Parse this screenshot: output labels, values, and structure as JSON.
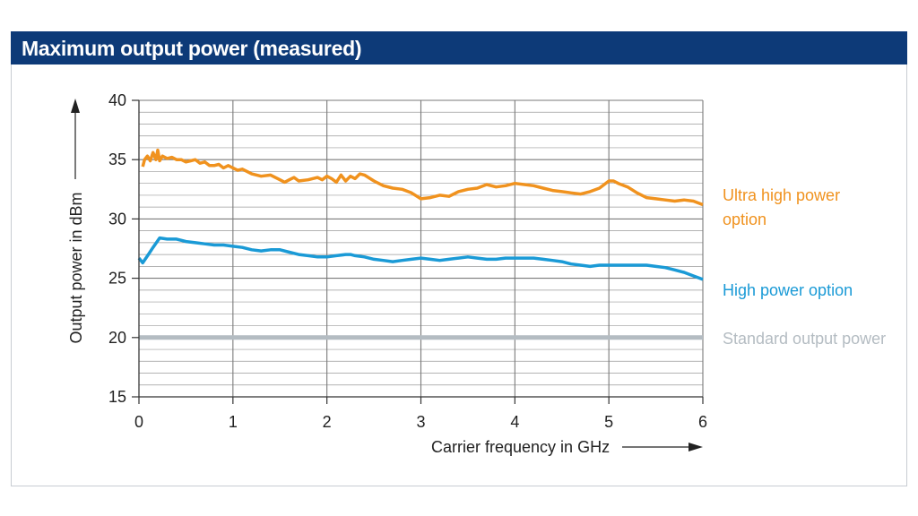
{
  "header": {
    "title": "Maximum output power (measured)"
  },
  "chart_data": {
    "type": "line",
    "title": "Maximum output power (measured)",
    "xlabel": "Carrier frequency in GHz",
    "ylabel": "Output power in dBm",
    "xlim": [
      0,
      6
    ],
    "ylim": [
      15,
      40
    ],
    "x_ticks": [
      0,
      1,
      2,
      3,
      4,
      5,
      6
    ],
    "y_ticks": [
      15,
      20,
      25,
      30,
      35,
      40
    ],
    "x_tick_labels": [
      "0",
      "1",
      "2",
      "3",
      "4",
      "5",
      "6"
    ],
    "y_tick_labels": [
      "15",
      "20",
      "25",
      "30",
      "35",
      "40"
    ],
    "grid": true,
    "minor_y_step": 1,
    "series": [
      {
        "name": "Ultra high power option",
        "legend_lines": [
          "Ultra high power",
          "option"
        ],
        "color": "#f0921e",
        "x": [
          0.04,
          0.06,
          0.09,
          0.12,
          0.15,
          0.18,
          0.2,
          0.22,
          0.25,
          0.3,
          0.35,
          0.4,
          0.45,
          0.5,
          0.55,
          0.6,
          0.65,
          0.7,
          0.75,
          0.8,
          0.85,
          0.9,
          0.95,
          1.0,
          1.05,
          1.1,
          1.15,
          1.2,
          1.3,
          1.4,
          1.5,
          1.55,
          1.6,
          1.65,
          1.7,
          1.8,
          1.9,
          1.95,
          2.0,
          2.05,
          2.1,
          2.15,
          2.2,
          2.25,
          2.3,
          2.35,
          2.4,
          2.5,
          2.6,
          2.7,
          2.8,
          2.9,
          3.0,
          3.1,
          3.2,
          3.3,
          3.4,
          3.5,
          3.6,
          3.7,
          3.8,
          3.9,
          4.0,
          4.1,
          4.2,
          4.3,
          4.4,
          4.5,
          4.6,
          4.7,
          4.8,
          4.9,
          5.0,
          5.05,
          5.1,
          5.2,
          5.3,
          5.4,
          5.5,
          5.6,
          5.7,
          5.8,
          5.9,
          6.0
        ],
        "values": [
          34.4,
          35.0,
          35.3,
          34.9,
          35.6,
          35.0,
          35.8,
          34.9,
          35.3,
          35.1,
          35.2,
          35.0,
          35.0,
          34.8,
          34.9,
          35.0,
          34.7,
          34.8,
          34.5,
          34.5,
          34.6,
          34.3,
          34.5,
          34.3,
          34.1,
          34.2,
          34.0,
          33.8,
          33.6,
          33.7,
          33.3,
          33.1,
          33.3,
          33.5,
          33.2,
          33.3,
          33.5,
          33.3,
          33.6,
          33.4,
          33.1,
          33.7,
          33.2,
          33.6,
          33.4,
          33.8,
          33.7,
          33.2,
          32.8,
          32.6,
          32.5,
          32.2,
          31.7,
          31.8,
          32.0,
          31.9,
          32.3,
          32.5,
          32.6,
          32.9,
          32.7,
          32.8,
          33.0,
          32.9,
          32.8,
          32.6,
          32.4,
          32.3,
          32.2,
          32.1,
          32.3,
          32.6,
          33.2,
          33.2,
          33.0,
          32.7,
          32.2,
          31.8,
          31.7,
          31.6,
          31.5,
          31.6,
          31.5,
          31.2
        ]
      },
      {
        "name": "High power option",
        "legend_lines": [
          "High power option"
        ],
        "color": "#1a9ad6",
        "x": [
          0.0,
          0.04,
          0.1,
          0.15,
          0.22,
          0.3,
          0.4,
          0.5,
          0.6,
          0.7,
          0.8,
          0.9,
          1.0,
          1.1,
          1.2,
          1.3,
          1.4,
          1.5,
          1.6,
          1.7,
          1.8,
          1.9,
          2.0,
          2.1,
          2.2,
          2.25,
          2.3,
          2.4,
          2.5,
          2.6,
          2.7,
          2.8,
          2.9,
          3.0,
          3.1,
          3.2,
          3.3,
          3.4,
          3.5,
          3.6,
          3.7,
          3.8,
          3.9,
          4.0,
          4.1,
          4.2,
          4.3,
          4.4,
          4.5,
          4.6,
          4.7,
          4.8,
          4.9,
          5.0,
          5.1,
          5.2,
          5.3,
          5.4,
          5.5,
          5.6,
          5.7,
          5.8,
          5.9,
          6.0
        ],
        "values": [
          26.7,
          26.3,
          27.0,
          27.6,
          28.4,
          28.3,
          28.3,
          28.1,
          28.0,
          27.9,
          27.8,
          27.8,
          27.7,
          27.6,
          27.4,
          27.3,
          27.4,
          27.4,
          27.2,
          27.0,
          26.9,
          26.8,
          26.8,
          26.9,
          27.0,
          27.0,
          26.9,
          26.8,
          26.6,
          26.5,
          26.4,
          26.5,
          26.6,
          26.7,
          26.6,
          26.5,
          26.6,
          26.7,
          26.8,
          26.7,
          26.6,
          26.6,
          26.7,
          26.7,
          26.7,
          26.7,
          26.6,
          26.5,
          26.4,
          26.2,
          26.1,
          26.0,
          26.1,
          26.1,
          26.1,
          26.1,
          26.1,
          26.1,
          26.0,
          25.9,
          25.7,
          25.5,
          25.2,
          24.9
        ]
      },
      {
        "name": "Standard output power",
        "legend_lines": [
          "Standard output power"
        ],
        "color": "#b4bcc2",
        "x": [
          0,
          6
        ],
        "values": [
          20,
          20
        ]
      }
    ]
  }
}
